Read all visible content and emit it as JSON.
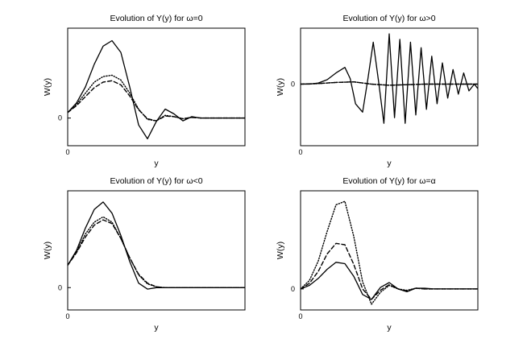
{
  "chart_data": [
    {
      "type": "line",
      "title": "Evolution of Y(y) for ω=0",
      "xlabel": "y",
      "ylabel": "W(y)",
      "x_ticks": [
        "0"
      ],
      "y_ticks": [
        "0"
      ],
      "xlim": [
        0,
        10
      ],
      "ylim": [
        -0.4,
        1.3
      ],
      "grid": false,
      "series": [
        {
          "style": "solid",
          "x": [
            0,
            0.5,
            1,
            1.5,
            2,
            2.5,
            3,
            3.5,
            4,
            4.5,
            5,
            5.5,
            6,
            6.5,
            7,
            7.5,
            8,
            8.5,
            9,
            9.5,
            10
          ],
          "y": [
            0.08,
            0.22,
            0.45,
            0.78,
            1.04,
            1.12,
            0.95,
            0.45,
            -0.1,
            -0.3,
            -0.05,
            0.13,
            0.06,
            -0.04,
            0.02,
            0.0,
            0.0,
            0.0,
            0.0,
            0.0,
            0.0
          ]
        },
        {
          "style": "dotted",
          "x": [
            0,
            0.5,
            1,
            1.5,
            2,
            2.5,
            3,
            3.5,
            4,
            4.5,
            5,
            5.5,
            6,
            6.5,
            7,
            7.5,
            8,
            8.5,
            9,
            9.5,
            10
          ],
          "y": [
            0.08,
            0.2,
            0.36,
            0.52,
            0.6,
            0.62,
            0.55,
            0.36,
            0.13,
            -0.02,
            -0.04,
            0.04,
            0.02,
            -0.01,
            0.01,
            0.0,
            0.0,
            0.0,
            0.0,
            0.0,
            0.0
          ]
        },
        {
          "style": "dashed",
          "x": [
            0,
            0.5,
            1,
            1.5,
            2,
            2.5,
            3,
            3.5,
            4,
            4.5,
            5,
            5.5,
            6,
            6.5,
            7,
            7.5,
            8,
            8.5,
            9,
            9.5,
            10
          ],
          "y": [
            0.08,
            0.18,
            0.31,
            0.44,
            0.52,
            0.54,
            0.48,
            0.32,
            0.12,
            -0.01,
            -0.04,
            0.03,
            0.02,
            -0.01,
            0.01,
            0.0,
            0.0,
            0.0,
            0.0,
            0.0,
            0.0
          ]
        }
      ]
    },
    {
      "type": "line",
      "title": "Evolution of Y(y) for ω>0",
      "xlabel": "y",
      "ylabel": "W(y)",
      "x_ticks": [
        "0"
      ],
      "y_ticks": [
        "0"
      ],
      "xlim": [
        0,
        10
      ],
      "ylim": [
        -1.1,
        1.0
      ],
      "grid": false,
      "series": [
        {
          "style": "solid",
          "x": [
            0,
            0.5,
            1,
            1.5,
            2,
            2.5,
            2.8,
            3.1,
            3.5,
            3.8,
            4.1,
            4.4,
            4.7,
            5.0,
            5.3,
            5.6,
            5.9,
            6.2,
            6.5,
            6.8,
            7.1,
            7.4,
            7.7,
            8.0,
            8.3,
            8.6,
            8.9,
            9.2,
            9.5,
            9.8,
            10
          ],
          "y": [
            0,
            0.0,
            0.02,
            0.08,
            0.2,
            0.3,
            0.1,
            -0.35,
            -0.5,
            0.1,
            0.75,
            0.05,
            -0.7,
            0.9,
            -0.6,
            0.8,
            -0.7,
            0.75,
            -0.55,
            0.65,
            -0.45,
            0.5,
            -0.35,
            0.38,
            -0.25,
            0.26,
            -0.18,
            0.2,
            -0.12,
            0.0,
            -0.08
          ]
        },
        {
          "style": "dotted",
          "x": [
            0,
            1,
            2,
            3,
            4,
            5,
            6,
            7,
            8,
            9,
            10
          ],
          "y": [
            0,
            0.01,
            0.03,
            0.04,
            0.0,
            -0.02,
            -0.01,
            0.0,
            0.0,
            0.0,
            0.0
          ]
        },
        {
          "style": "dashed",
          "x": [
            0,
            1,
            2,
            3,
            4,
            5,
            6,
            7,
            8,
            9,
            10
          ],
          "y": [
            0,
            0.01,
            0.03,
            0.04,
            0.0,
            -0.02,
            -0.01,
            0.0,
            0.0,
            0.0,
            0.0
          ]
        }
      ]
    },
    {
      "type": "line",
      "title": "Evolution of Y(y) for ω<0",
      "xlabel": "y",
      "ylabel": "W(y)",
      "x_ticks": [
        "0"
      ],
      "y_ticks": [
        "0"
      ],
      "xlim": [
        0,
        10
      ],
      "ylim": [
        -0.3,
        1.3
      ],
      "grid": false,
      "series": [
        {
          "style": "solid",
          "x": [
            0,
            0.5,
            1,
            1.5,
            2,
            2.5,
            3,
            3.5,
            4,
            4.5,
            5,
            5.5,
            6,
            7,
            8,
            9,
            10
          ],
          "y": [
            0.3,
            0.5,
            0.8,
            1.05,
            1.15,
            1.0,
            0.7,
            0.35,
            0.06,
            -0.02,
            0.0,
            0.0,
            0.0,
            0.0,
            0.0,
            0.0,
            0.0
          ]
        },
        {
          "style": "dotted",
          "x": [
            0,
            0.5,
            1,
            1.5,
            2,
            2.5,
            3,
            3.5,
            4,
            4.5,
            5,
            5.5,
            6,
            7,
            8,
            9,
            10
          ],
          "y": [
            0.3,
            0.48,
            0.72,
            0.88,
            0.95,
            0.88,
            0.66,
            0.4,
            0.17,
            0.05,
            0.01,
            0.0,
            0.0,
            0.0,
            0.0,
            0.0,
            0.0
          ]
        },
        {
          "style": "dashed",
          "x": [
            0,
            0.5,
            1,
            1.5,
            2,
            2.5,
            3,
            3.5,
            4,
            4.5,
            5,
            5.5,
            6,
            7,
            8,
            9,
            10
          ],
          "y": [
            0.3,
            0.47,
            0.68,
            0.84,
            0.91,
            0.86,
            0.66,
            0.4,
            0.18,
            0.06,
            0.01,
            0.0,
            0.0,
            0.0,
            0.0,
            0.0,
            0.0
          ]
        }
      ]
    },
    {
      "type": "line",
      "title": "Evolution of Y(y) for ω=α",
      "xlabel": "y",
      "ylabel": "W(y)",
      "x_ticks": [
        "0"
      ],
      "y_ticks": [
        "0"
      ],
      "xlim": [
        0,
        10
      ],
      "ylim": [
        -0.3,
        1.4
      ],
      "grid": false,
      "series": [
        {
          "style": "solid",
          "x": [
            0,
            0.5,
            1,
            1.5,
            2,
            2.5,
            3,
            3.5,
            4,
            4.5,
            5,
            5.5,
            6,
            6.5,
            7,
            7.5,
            8,
            9,
            10
          ],
          "y": [
            0.0,
            0.05,
            0.15,
            0.28,
            0.38,
            0.36,
            0.18,
            -0.08,
            -0.15,
            0.02,
            0.09,
            0.0,
            -0.04,
            0.01,
            0.01,
            0.0,
            0.0,
            0.0,
            0.0
          ]
        },
        {
          "style": "dotted",
          "x": [
            0,
            0.5,
            1,
            1.5,
            2,
            2.5,
            3,
            3.5,
            4,
            4.5,
            5,
            5.5,
            6,
            6.5,
            7,
            7.5,
            8,
            9,
            10
          ],
          "y": [
            0.0,
            0.12,
            0.4,
            0.82,
            1.2,
            1.25,
            0.75,
            0.1,
            -0.22,
            -0.05,
            0.05,
            0.0,
            -0.02,
            0.01,
            0.0,
            0.0,
            0.0,
            0.0,
            0.0
          ]
        },
        {
          "style": "dashed",
          "x": [
            0,
            0.5,
            1,
            1.5,
            2,
            2.5,
            3,
            3.5,
            4,
            4.5,
            5,
            5.5,
            6,
            6.5,
            7,
            7.5,
            8,
            9,
            10
          ],
          "y": [
            0.0,
            0.08,
            0.25,
            0.5,
            0.65,
            0.63,
            0.35,
            0.0,
            -0.15,
            -0.02,
            0.06,
            0.0,
            -0.03,
            0.01,
            0.0,
            0.0,
            0.0,
            0.0,
            0.0
          ]
        }
      ]
    }
  ]
}
